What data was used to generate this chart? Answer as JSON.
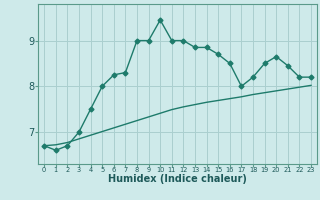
{
  "xlabel": "Humidex (Indice chaleur)",
  "ylabel": "",
  "bg_color": "#ceeaea",
  "line_color": "#1e7b6b",
  "x": [
    0,
    1,
    2,
    3,
    4,
    5,
    6,
    7,
    8,
    9,
    10,
    11,
    12,
    13,
    14,
    15,
    16,
    17,
    18,
    19,
    20,
    21,
    22,
    23
  ],
  "y_curve": [
    6.7,
    6.6,
    6.7,
    7.0,
    7.5,
    8.0,
    8.25,
    8.3,
    9.0,
    9.0,
    9.45,
    9.0,
    9.0,
    8.85,
    8.85,
    8.7,
    8.5,
    8.0,
    8.2,
    8.5,
    8.65,
    8.45,
    8.2,
    8.2
  ],
  "y_line": [
    6.7,
    6.72,
    6.77,
    6.85,
    6.93,
    7.01,
    7.09,
    7.17,
    7.25,
    7.33,
    7.41,
    7.49,
    7.55,
    7.6,
    7.65,
    7.69,
    7.73,
    7.77,
    7.82,
    7.86,
    7.9,
    7.94,
    7.98,
    8.02
  ],
  "ylim": [
    6.3,
    9.8
  ],
  "yticks": [
    7,
    8,
    9
  ],
  "xtick_labels": [
    "0",
    "1",
    "2",
    "3",
    "4",
    "5",
    "6",
    "7",
    "8",
    "9",
    "10",
    "11",
    "12",
    "13",
    "14",
    "15",
    "16",
    "17",
    "18",
    "19",
    "20",
    "21",
    "22",
    "23"
  ],
  "grid_color": "#aacfcf",
  "spine_color": "#5a9a8a",
  "marker": "D",
  "marker_size": 2.5,
  "linewidth": 1.0
}
